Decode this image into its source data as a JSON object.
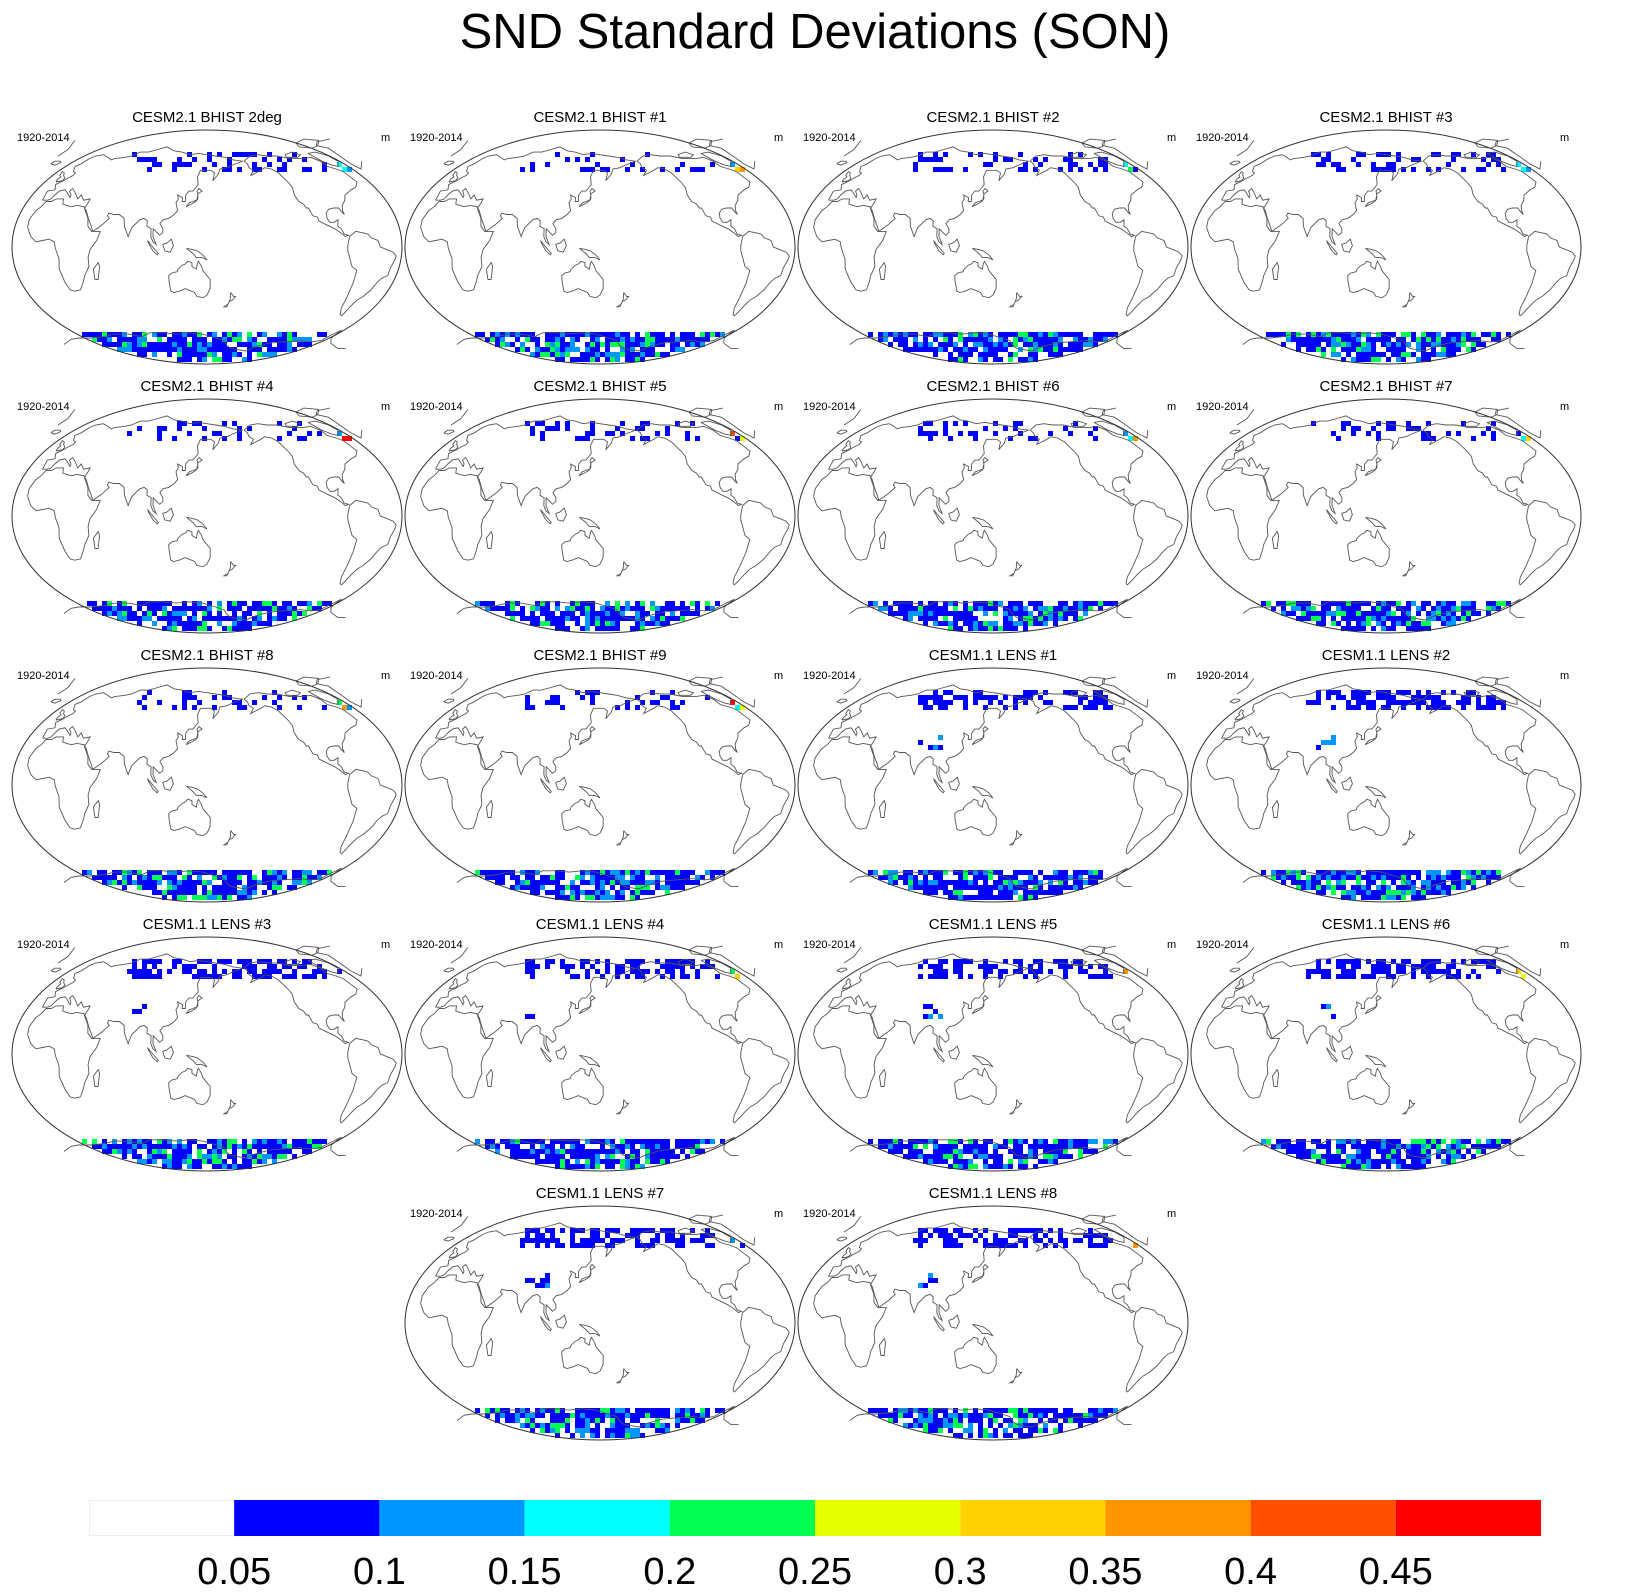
{
  "title": "SND Standard Deviations (SON)",
  "chart_data": {
    "type": "heatmap",
    "title": "SND Standard Deviations (SON)",
    "projection": "Robinson, Pacific-centered world map",
    "variable": "SND",
    "season": "SON",
    "units": "m",
    "period": "1920-2014",
    "panels": [
      {
        "title": "CESM2.1 BHIST 2deg",
        "left": "1920-2014",
        "right": "m",
        "family": "CESM2"
      },
      {
        "title": "CESM2.1 BHIST #1",
        "left": "1920-2014",
        "right": "m",
        "family": "CESM2"
      },
      {
        "title": "CESM2.1 BHIST #2",
        "left": "1920-2014",
        "right": "m",
        "family": "CESM2"
      },
      {
        "title": "CESM2.1 BHIST #3",
        "left": "1920-2014",
        "right": "m",
        "family": "CESM2"
      },
      {
        "title": "CESM2.1 BHIST #4",
        "left": "1920-2014",
        "right": "m",
        "family": "CESM2"
      },
      {
        "title": "CESM2.1 BHIST #5",
        "left": "1920-2014",
        "right": "m",
        "family": "CESM2"
      },
      {
        "title": "CESM2.1 BHIST #6",
        "left": "1920-2014",
        "right": "m",
        "family": "CESM2"
      },
      {
        "title": "CESM2.1 BHIST #7",
        "left": "1920-2014",
        "right": "m",
        "family": "CESM2"
      },
      {
        "title": "CESM2.1 BHIST #8",
        "left": "1920-2014",
        "right": "m",
        "family": "CESM2"
      },
      {
        "title": "CESM2.1 BHIST #9",
        "left": "1920-2014",
        "right": "m",
        "family": "CESM2"
      },
      {
        "title": "CESM1.1 LENS #1",
        "left": "1920-2014",
        "right": "m",
        "family": "CESM1"
      },
      {
        "title": "CESM1.1 LENS #2",
        "left": "1920-2014",
        "right": "m",
        "family": "CESM1"
      },
      {
        "title": "CESM1.1 LENS #3",
        "left": "1920-2014",
        "right": "m",
        "family": "CESM1"
      },
      {
        "title": "CESM1.1 LENS #4",
        "left": "1920-2014",
        "right": "m",
        "family": "CESM1"
      },
      {
        "title": "CESM1.1 LENS #5",
        "left": "1920-2014",
        "right": "m",
        "family": "CESM1"
      },
      {
        "title": "CESM1.1 LENS #6",
        "left": "1920-2014",
        "right": "m",
        "family": "CESM1"
      },
      {
        "title": "CESM1.1 LENS #7",
        "left": "1920-2014",
        "right": "m",
        "family": "CESM1"
      },
      {
        "title": "CESM1.1 LENS #8",
        "left": "1920-2014",
        "right": "m",
        "family": "CESM1"
      }
    ],
    "colorbar": {
      "levels": [
        "0.05",
        "0.1",
        "0.15",
        "0.2",
        "0.25",
        "0.3",
        "0.35",
        "0.4",
        "0.45"
      ],
      "colors": [
        "#ffffff",
        "#0000ff",
        "#0096ff",
        "#00ffff",
        "#00ff50",
        "#e6ff00",
        "#ffd200",
        "#ff9600",
        "#ff5000",
        "#ff0000"
      ]
    }
  }
}
